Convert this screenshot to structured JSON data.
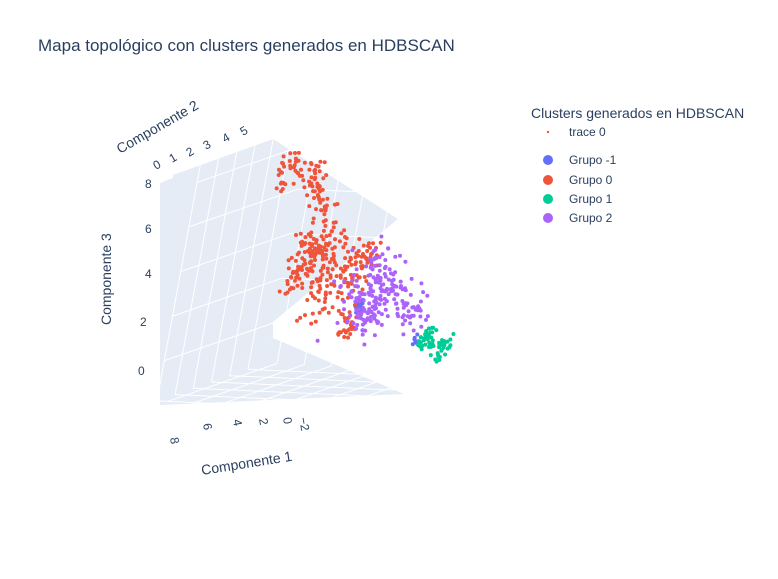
{
  "chart_data": {
    "type": "scatter",
    "projection": "3d",
    "title": "Mapa topológico con clusters generados en HDBSCAN",
    "axes": {
      "x": {
        "label": "Componente 1",
        "ticks": [
          "8",
          "6",
          "4",
          "2",
          "0",
          "−2"
        ]
      },
      "y": {
        "label": "Componente 2",
        "ticks": [
          "0",
          "1",
          "2",
          "3",
          "4",
          "5"
        ]
      },
      "z": {
        "label": "Componente 3",
        "ticks": [
          "8",
          "6",
          "4",
          "2",
          "0"
        ]
      }
    },
    "legend": {
      "title": "Clusters generados en HDBSCAN",
      "placement": "top-right",
      "entries": [
        {
          "name": "trace 0",
          "color": "#ef553b",
          "marker": "small-dot"
        },
        {
          "name": "Grupo -1",
          "color": "#636efa",
          "marker": "dot"
        },
        {
          "name": "Grupo 0",
          "color": "#ef553b",
          "marker": "dot"
        },
        {
          "name": "Grupo 1",
          "color": "#00cc96",
          "marker": "dot"
        },
        {
          "name": "Grupo 2",
          "color": "#ab63fa",
          "marker": "dot"
        }
      ]
    },
    "series": [
      {
        "name": "Grupo -1",
        "color": "#636efa",
        "clusters": [
          {
            "x": -1.0,
            "y": 3.0,
            "z": 1.8,
            "spread": 0.2,
            "count": 22
          },
          {
            "x": -3.6,
            "y": 4.5,
            "z": 0.0,
            "spread": 0.1,
            "count": 6
          }
        ]
      },
      {
        "name": "Grupo 0",
        "color": "#ef553b",
        "clusters": [
          {
            "x": 2.6,
            "y": 0.3,
            "z": 8.6,
            "spread": 0.4,
            "count": 30
          },
          {
            "x": 1.8,
            "y": 1.0,
            "z": 8.5,
            "spread": 0.4,
            "count": 25
          },
          {
            "x": 1.6,
            "y": 1.3,
            "z": 7.5,
            "spread": 0.3,
            "count": 18
          },
          {
            "x": 1.2,
            "y": 1.5,
            "z": 6.8,
            "spread": 0.2,
            "count": 10
          },
          {
            "x": 1.0,
            "y": 1.5,
            "z": 5.2,
            "spread": 0.7,
            "count": 70
          },
          {
            "x": 1.6,
            "y": 1.3,
            "z": 3.8,
            "spread": 0.6,
            "count": 55
          },
          {
            "x": 0.2,
            "y": 2.0,
            "z": 3.3,
            "spread": 0.9,
            "count": 90
          },
          {
            "x": -1.0,
            "y": 2.5,
            "z": 3.8,
            "spread": 0.5,
            "count": 35
          },
          {
            "x": -1.2,
            "y": 2.8,
            "z": 4.4,
            "spread": 0.3,
            "count": 15
          },
          {
            "x": -0.5,
            "y": 3.0,
            "z": 1.0,
            "spread": 0.3,
            "count": 25
          }
        ]
      },
      {
        "name": "Grupo 1",
        "color": "#00cc96",
        "clusters": [
          {
            "x": -4.2,
            "y": 4.6,
            "z": 0.0,
            "spread": 0.3,
            "count": 35
          },
          {
            "x": -5.0,
            "y": 5.0,
            "z": -0.4,
            "spread": 0.3,
            "count": 30
          }
        ]
      },
      {
        "name": "Grupo 2",
        "color": "#ab63fa",
        "clusters": [
          {
            "x": -1.4,
            "y": 3.0,
            "z": 2.8,
            "spread": 0.9,
            "count": 120
          },
          {
            "x": -2.0,
            "y": 3.8,
            "z": 2.4,
            "spread": 0.4,
            "count": 30
          },
          {
            "x": -3.2,
            "y": 4.2,
            "z": 1.3,
            "spread": 0.5,
            "count": 45
          },
          {
            "x": -1.2,
            "y": 3.2,
            "z": 1.2,
            "spread": 0.4,
            "count": 30
          }
        ]
      }
    ]
  }
}
